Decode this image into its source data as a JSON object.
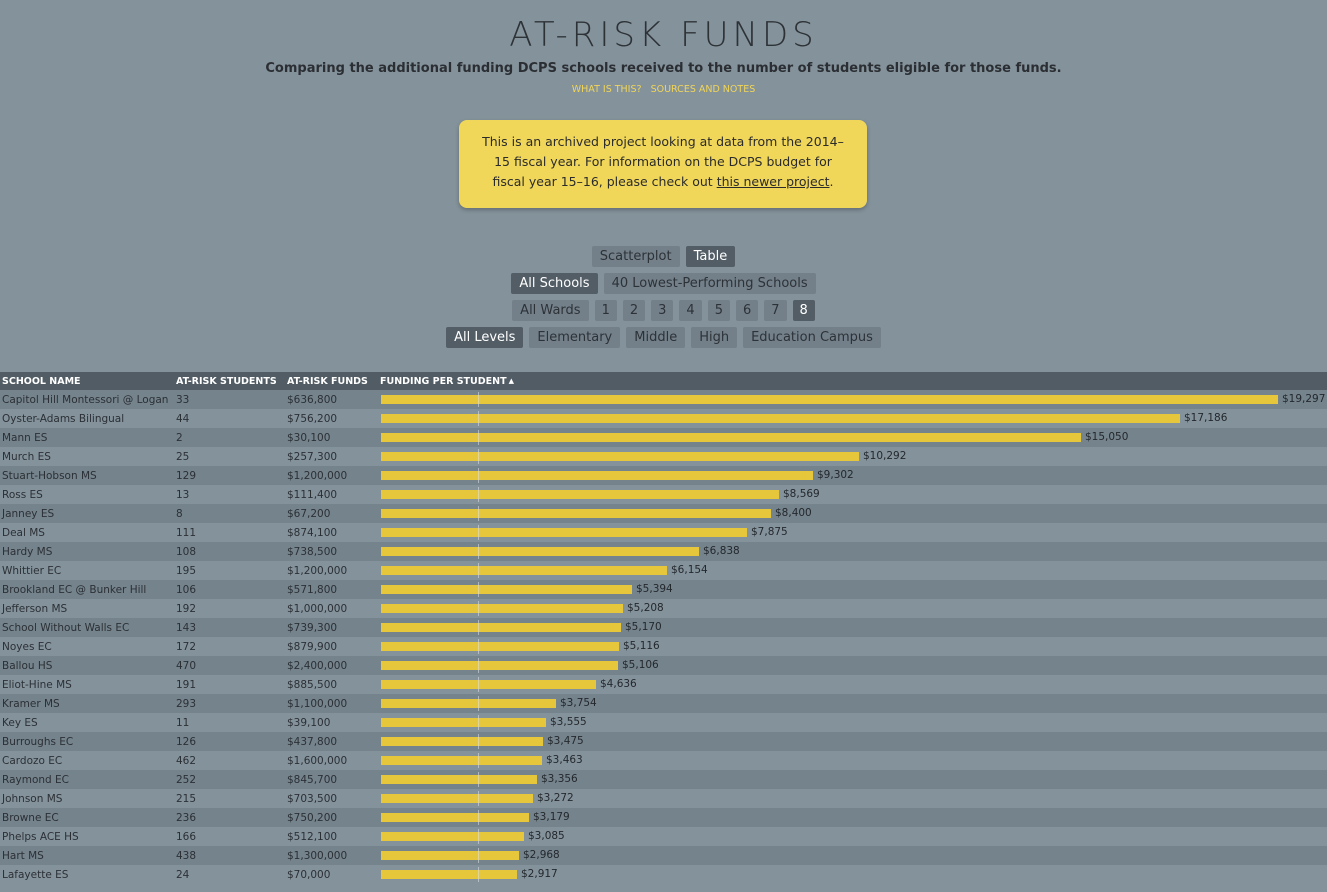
{
  "header": {
    "title": "AT-RISK FUNDS",
    "subtitle": "Comparing the additional funding DCPS schools received to the number of students eligible for those funds.",
    "link_what": "WHAT IS THIS?",
    "link_sources": "SOURCES AND NOTES"
  },
  "notice": {
    "text_before": "This is an archived project looking at data from the 2014–15 fiscal year. For information on the DCPS budget for fiscal year 15–16, please check out ",
    "link_text": "this newer project",
    "text_after": "."
  },
  "view_toggle": {
    "scatterplot": "Scatterplot",
    "table": "Table",
    "selected": "Table"
  },
  "school_filter": {
    "all": "All Schools",
    "lowest": "40 Lowest-Performing Schools",
    "selected": "All Schools"
  },
  "ward_filter": {
    "all": "All Wards",
    "wards": [
      "1",
      "2",
      "3",
      "4",
      "5",
      "6",
      "7",
      "8"
    ],
    "selected": "8"
  },
  "level_filter": {
    "options": [
      "All Levels",
      "Elementary",
      "Middle",
      "High",
      "Education Campus"
    ],
    "selected": "All Levels"
  },
  "table": {
    "columns": {
      "name": "SCHOOL NAME",
      "students": "AT-RISK STUDENTS",
      "funds": "AT-RISK FUNDS",
      "per_student": "FUNDING PER STUDENT",
      "sort_indicator": "▲"
    },
    "colors": {
      "bar": "#e6c63b",
      "header": "#515c64",
      "row_dark": "#75838c",
      "row_light": "#84929b"
    },
    "max_per_student": 19297,
    "reference_per_student": 2079,
    "rows": [
      {
        "name": "Capitol Hill Montessori @ Logan",
        "students": "33",
        "funds": "$636,800",
        "per_student": 19297,
        "per_student_label": "$19,297"
      },
      {
        "name": "Oyster-Adams Bilingual",
        "students": "44",
        "funds": "$756,200",
        "per_student": 17186,
        "per_student_label": "$17,186"
      },
      {
        "name": "Mann ES",
        "students": "2",
        "funds": "$30,100",
        "per_student": 15050,
        "per_student_label": "$15,050"
      },
      {
        "name": "Murch ES",
        "students": "25",
        "funds": "$257,300",
        "per_student": 10292,
        "per_student_label": "$10,292"
      },
      {
        "name": "Stuart-Hobson MS",
        "students": "129",
        "funds": "$1,200,000",
        "per_student": 9302,
        "per_student_label": "$9,302"
      },
      {
        "name": "Ross ES",
        "students": "13",
        "funds": "$111,400",
        "per_student": 8569,
        "per_student_label": "$8,569"
      },
      {
        "name": "Janney ES",
        "students": "8",
        "funds": "$67,200",
        "per_student": 8400,
        "per_student_label": "$8,400"
      },
      {
        "name": "Deal MS",
        "students": "111",
        "funds": "$874,100",
        "per_student": 7875,
        "per_student_label": "$7,875"
      },
      {
        "name": "Hardy MS",
        "students": "108",
        "funds": "$738,500",
        "per_student": 6838,
        "per_student_label": "$6,838"
      },
      {
        "name": "Whittier EC",
        "students": "195",
        "funds": "$1,200,000",
        "per_student": 6154,
        "per_student_label": "$6,154"
      },
      {
        "name": "Brookland EC @ Bunker Hill",
        "students": "106",
        "funds": "$571,800",
        "per_student": 5394,
        "per_student_label": "$5,394"
      },
      {
        "name": "Jefferson MS",
        "students": "192",
        "funds": "$1,000,000",
        "per_student": 5208,
        "per_student_label": "$5,208"
      },
      {
        "name": "School Without Walls EC",
        "students": "143",
        "funds": "$739,300",
        "per_student": 5170,
        "per_student_label": "$5,170"
      },
      {
        "name": "Noyes EC",
        "students": "172",
        "funds": "$879,900",
        "per_student": 5116,
        "per_student_label": "$5,116"
      },
      {
        "name": "Ballou HS",
        "students": "470",
        "funds": "$2,400,000",
        "per_student": 5106,
        "per_student_label": "$5,106"
      },
      {
        "name": "Eliot-Hine MS",
        "students": "191",
        "funds": "$885,500",
        "per_student": 4636,
        "per_student_label": "$4,636"
      },
      {
        "name": "Kramer MS",
        "students": "293",
        "funds": "$1,100,000",
        "per_student": 3754,
        "per_student_label": "$3,754"
      },
      {
        "name": "Key ES",
        "students": "11",
        "funds": "$39,100",
        "per_student": 3555,
        "per_student_label": "$3,555"
      },
      {
        "name": "Burroughs EC",
        "students": "126",
        "funds": "$437,800",
        "per_student": 3475,
        "per_student_label": "$3,475"
      },
      {
        "name": "Cardozo EC",
        "students": "462",
        "funds": "$1,600,000",
        "per_student": 3463,
        "per_student_label": "$3,463"
      },
      {
        "name": "Raymond EC",
        "students": "252",
        "funds": "$845,700",
        "per_student": 3356,
        "per_student_label": "$3,356"
      },
      {
        "name": "Johnson MS",
        "students": "215",
        "funds": "$703,500",
        "per_student": 3272,
        "per_student_label": "$3,272"
      },
      {
        "name": "Browne EC",
        "students": "236",
        "funds": "$750,200",
        "per_student": 3179,
        "per_student_label": "$3,179"
      },
      {
        "name": "Phelps ACE HS",
        "students": "166",
        "funds": "$512,100",
        "per_student": 3085,
        "per_student_label": "$3,085"
      },
      {
        "name": "Hart MS",
        "students": "438",
        "funds": "$1,300,000",
        "per_student": 2968,
        "per_student_label": "$2,968"
      },
      {
        "name": "Lafayette ES",
        "students": "24",
        "funds": "$70,000",
        "per_student": 2917,
        "per_student_label": "$2,917"
      }
    ]
  }
}
